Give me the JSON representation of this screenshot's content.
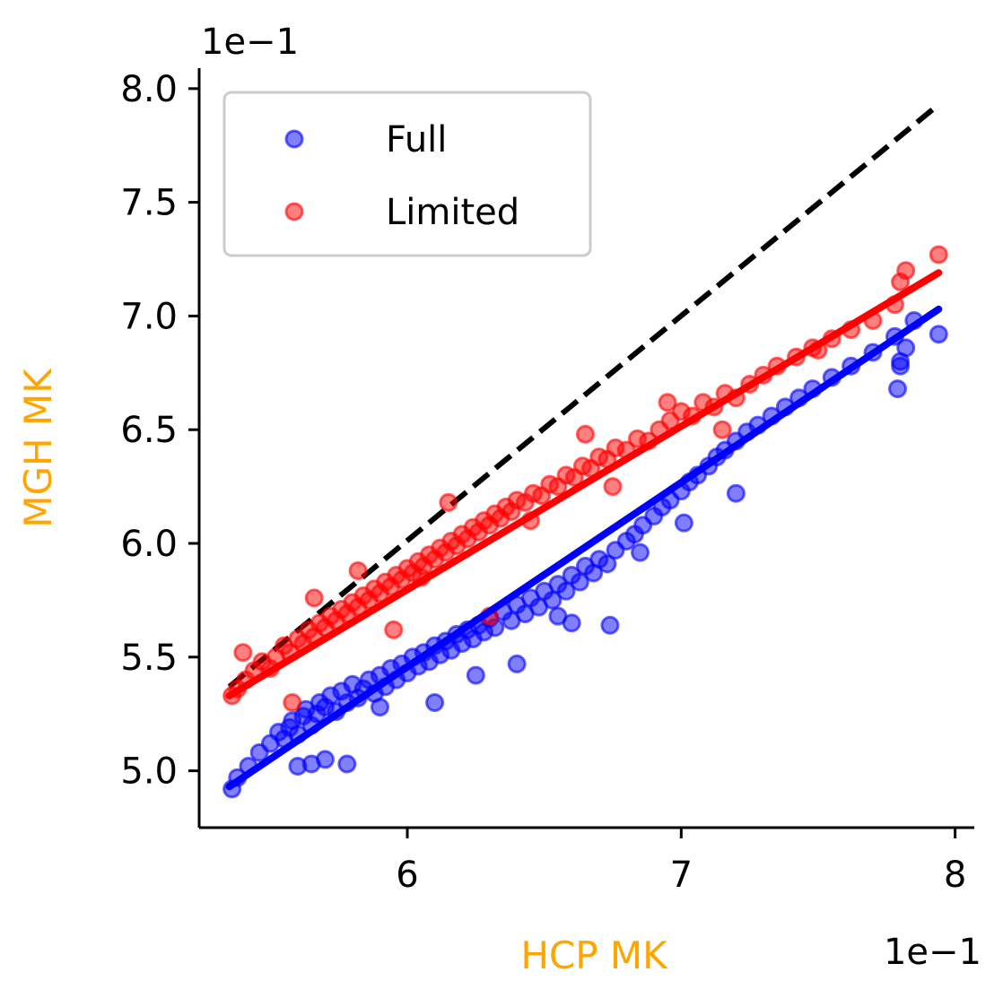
{
  "chart_data": {
    "type": "scatter",
    "xlabel": "HCP MK",
    "ylabel": "MGH MK",
    "x_offset_label": "1e−1",
    "y_offset_label": "1e−1",
    "xlim": [
      5.24,
      8.07
    ],
    "ylim": [
      4.75,
      8.09
    ],
    "x_ticks": [
      6,
      7,
      8
    ],
    "x_tick_labels": [
      "6",
      "7",
      "8"
    ],
    "y_ticks": [
      5.0,
      5.5,
      6.0,
      6.5,
      7.0,
      7.5,
      8.0
    ],
    "y_tick_labels": [
      "5.0",
      "5.5",
      "6.0",
      "6.5",
      "7.0",
      "7.5",
      "8.0"
    ],
    "grid": false,
    "legend_position": "top-left",
    "label_color": "#ffa500",
    "identity_line": {
      "x": [
        5.35,
        7.94
      ],
      "y": [
        5.37,
        7.93
      ],
      "style": "dashed",
      "color": "#000000"
    },
    "series": [
      {
        "name": "Full",
        "color": "#0000ff",
        "fit": {
          "x": [
            5.35,
            7.94
          ],
          "y": [
            4.93,
            7.03
          ]
        },
        "x": [
          5.36,
          5.38,
          5.42,
          5.46,
          5.5,
          5.53,
          5.55,
          5.57,
          5.58,
          5.6,
          5.62,
          5.63,
          5.65,
          5.67,
          5.68,
          5.7,
          5.72,
          5.74,
          5.76,
          5.78,
          5.8,
          5.82,
          5.84,
          5.86,
          5.88,
          5.9,
          5.92,
          5.94,
          5.96,
          5.98,
          6.0,
          6.02,
          6.04,
          6.06,
          6.08,
          6.1,
          6.12,
          6.14,
          6.16,
          6.18,
          6.2,
          6.22,
          6.24,
          6.26,
          6.28,
          6.3,
          6.32,
          6.35,
          6.38,
          6.4,
          6.43,
          6.45,
          6.48,
          6.5,
          6.53,
          6.55,
          6.58,
          6.6,
          6.63,
          6.65,
          6.68,
          6.7,
          6.73,
          6.76,
          6.8,
          6.83,
          6.86,
          6.9,
          6.93,
          6.96,
          7.0,
          7.03,
          7.06,
          7.1,
          7.13,
          7.16,
          7.2,
          7.24,
          7.28,
          7.33,
          7.38,
          7.43,
          7.48,
          7.55,
          7.62,
          7.7,
          7.78,
          7.8,
          7.82,
          7.85,
          7.94,
          5.6,
          5.65,
          5.7,
          5.78,
          5.9,
          6.1,
          6.25,
          6.4,
          6.55,
          6.6,
          6.74,
          6.85,
          7.01,
          7.2,
          7.79,
          7.8
        ],
        "y": [
          4.92,
          4.97,
          5.02,
          5.08,
          5.12,
          5.17,
          5.14,
          5.19,
          5.22,
          5.16,
          5.24,
          5.27,
          5.2,
          5.25,
          5.3,
          5.28,
          5.33,
          5.26,
          5.35,
          5.3,
          5.38,
          5.32,
          5.36,
          5.4,
          5.34,
          5.42,
          5.37,
          5.45,
          5.4,
          5.47,
          5.43,
          5.5,
          5.46,
          5.52,
          5.48,
          5.55,
          5.51,
          5.57,
          5.53,
          5.6,
          5.56,
          5.62,
          5.58,
          5.64,
          5.61,
          5.67,
          5.63,
          5.7,
          5.66,
          5.73,
          5.69,
          5.76,
          5.72,
          5.79,
          5.75,
          5.82,
          5.79,
          5.86,
          5.83,
          5.9,
          5.87,
          5.93,
          5.91,
          5.97,
          6.01,
          6.04,
          6.08,
          6.12,
          6.16,
          6.19,
          6.23,
          6.27,
          6.3,
          6.34,
          6.38,
          6.41,
          6.45,
          6.49,
          6.52,
          6.56,
          6.6,
          6.64,
          6.68,
          6.73,
          6.78,
          6.84,
          6.91,
          6.78,
          6.86,
          6.98,
          6.92,
          5.02,
          5.03,
          5.05,
          5.03,
          5.28,
          5.3,
          5.42,
          5.47,
          5.68,
          5.65,
          5.64,
          5.96,
          6.09,
          6.22,
          6.68,
          6.8
        ]
      },
      {
        "name": "Limited",
        "color": "#ff0000",
        "fit": {
          "x": [
            5.35,
            7.94
          ],
          "y": [
            5.33,
            7.19
          ]
        },
        "x": [
          5.36,
          5.38,
          5.41,
          5.44,
          5.47,
          5.5,
          5.52,
          5.55,
          5.57,
          5.6,
          5.62,
          5.64,
          5.66,
          5.68,
          5.7,
          5.72,
          5.74,
          5.76,
          5.78,
          5.8,
          5.82,
          5.84,
          5.86,
          5.88,
          5.9,
          5.92,
          5.94,
          5.96,
          5.98,
          6.0,
          6.02,
          6.04,
          6.06,
          6.08,
          6.1,
          6.12,
          6.14,
          6.16,
          6.18,
          6.2,
          6.22,
          6.24,
          6.26,
          6.28,
          6.3,
          6.32,
          6.34,
          6.36,
          6.38,
          6.4,
          6.43,
          6.46,
          6.49,
          6.52,
          6.55,
          6.58,
          6.61,
          6.64,
          6.67,
          6.7,
          6.73,
          6.76,
          6.8,
          6.84,
          6.88,
          6.92,
          6.96,
          7.0,
          7.04,
          7.08,
          7.12,
          7.16,
          7.2,
          7.25,
          7.3,
          7.35,
          7.42,
          7.48,
          7.55,
          7.62,
          7.7,
          7.78,
          7.8,
          7.82,
          7.94,
          5.4,
          5.58,
          5.66,
          5.82,
          5.95,
          6.05,
          6.15,
          6.3,
          6.45,
          6.65,
          6.75,
          6.95,
          7.15,
          7.5
        ],
        "y": [
          5.33,
          5.36,
          5.4,
          5.44,
          5.48,
          5.45,
          5.5,
          5.55,
          5.52,
          5.58,
          5.56,
          5.62,
          5.59,
          5.65,
          5.63,
          5.68,
          5.66,
          5.71,
          5.69,
          5.74,
          5.72,
          5.77,
          5.75,
          5.8,
          5.78,
          5.83,
          5.81,
          5.86,
          5.84,
          5.89,
          5.87,
          5.92,
          5.9,
          5.95,
          5.93,
          5.98,
          5.96,
          6.01,
          5.99,
          6.04,
          6.02,
          6.07,
          6.05,
          6.1,
          6.08,
          6.13,
          6.11,
          6.16,
          6.14,
          6.19,
          6.18,
          6.22,
          6.21,
          6.26,
          6.25,
          6.3,
          6.29,
          6.34,
          6.33,
          6.38,
          6.37,
          6.42,
          6.41,
          6.46,
          6.45,
          6.5,
          6.54,
          6.58,
          6.56,
          6.62,
          6.6,
          6.66,
          6.64,
          6.7,
          6.74,
          6.78,
          6.82,
          6.86,
          6.9,
          6.94,
          6.98,
          7.05,
          7.15,
          7.2,
          7.27,
          5.52,
          5.3,
          5.76,
          5.88,
          5.62,
          5.85,
          6.18,
          5.68,
          6.1,
          6.48,
          6.25,
          6.62,
          6.5,
          6.85
        ]
      }
    ]
  }
}
